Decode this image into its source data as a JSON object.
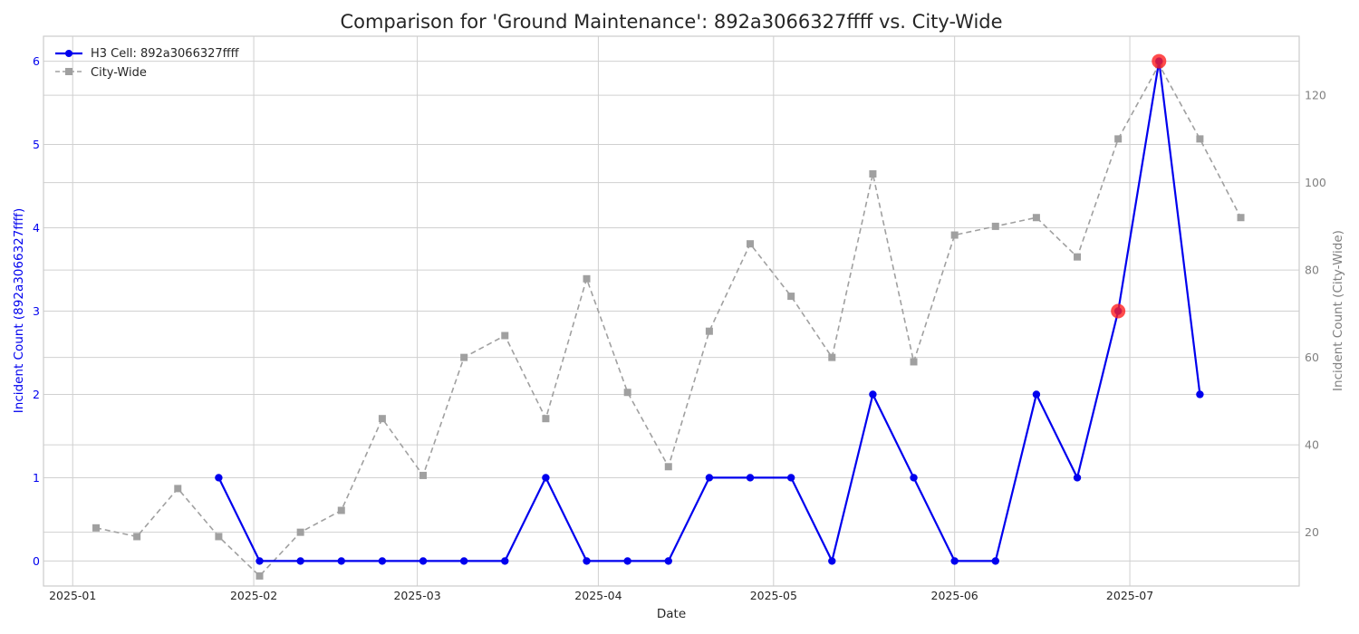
{
  "chart_data": {
    "type": "line",
    "title": "Comparison for 'Ground Maintenance': 892a3066327ffff vs. City-Wide",
    "xlabel": "Date",
    "ylabel_left": "Incident Count (892a3066327ffff)",
    "ylabel_right": "Incident Count (City-Wide)",
    "x_ticks": [
      "2025-01",
      "2025-02",
      "2025-03",
      "2025-04",
      "2025-05",
      "2025-06",
      "2025-07"
    ],
    "y_left_ticks": [
      "0",
      "1",
      "2",
      "3",
      "4",
      "5",
      "6"
    ],
    "y_right_ticks": [
      "20",
      "40",
      "60",
      "80",
      "100",
      "120"
    ],
    "ylim_left": [
      -0.3,
      6.3
    ],
    "ylim_right": [
      7.7,
      133.5
    ],
    "xlim": [
      "2024-12-27",
      "2025-07-30"
    ],
    "legend_location": "upper left",
    "grid": true,
    "colors": {
      "cell": "#0000ee",
      "city": "#a0a0a0",
      "anomaly": "#ff2020"
    },
    "series": [
      {
        "name": "H3 Cell: 892a3066327ffff",
        "axis": "left",
        "style": "solid-circle",
        "x": [
          "2025-01-26",
          "2025-02-02",
          "2025-02-09",
          "2025-02-16",
          "2025-02-23",
          "2025-03-02",
          "2025-03-09",
          "2025-03-16",
          "2025-03-23",
          "2025-03-30",
          "2025-04-06",
          "2025-04-13",
          "2025-04-20",
          "2025-04-27",
          "2025-05-04",
          "2025-05-11",
          "2025-05-18",
          "2025-05-25",
          "2025-06-01",
          "2025-06-08",
          "2025-06-15",
          "2025-06-22",
          "2025-06-29",
          "2025-07-06",
          "2025-07-13"
        ],
        "values": [
          1,
          0,
          0,
          0,
          0,
          0,
          0,
          0,
          1,
          0,
          0,
          0,
          1,
          1,
          1,
          0,
          2,
          1,
          0,
          0,
          2,
          1,
          3,
          6,
          2
        ]
      },
      {
        "name": "City-Wide",
        "axis": "right",
        "style": "dashed-square",
        "x": [
          "2025-01-05",
          "2025-01-12",
          "2025-01-19",
          "2025-01-26",
          "2025-02-02",
          "2025-02-09",
          "2025-02-16",
          "2025-02-23",
          "2025-03-02",
          "2025-03-09",
          "2025-03-16",
          "2025-03-23",
          "2025-03-30",
          "2025-04-06",
          "2025-04-13",
          "2025-04-20",
          "2025-04-27",
          "2025-05-04",
          "2025-05-11",
          "2025-05-18",
          "2025-05-25",
          "2025-06-01",
          "2025-06-08",
          "2025-06-15",
          "2025-06-22",
          "2025-06-29",
          "2025-07-06",
          "2025-07-13",
          "2025-07-20"
        ],
        "values": [
          21,
          19,
          30,
          19,
          10,
          20,
          25,
          46,
          33,
          60,
          65,
          46,
          78,
          52,
          35,
          66,
          86,
          74,
          60,
          102,
          59,
          88,
          90,
          92,
          83,
          110,
          127,
          110,
          92
        ]
      }
    ],
    "highlights": [
      {
        "x": "2025-06-29",
        "value": 3,
        "axis": "left"
      },
      {
        "x": "2025-07-06",
        "value": 6,
        "axis": "left"
      }
    ]
  }
}
